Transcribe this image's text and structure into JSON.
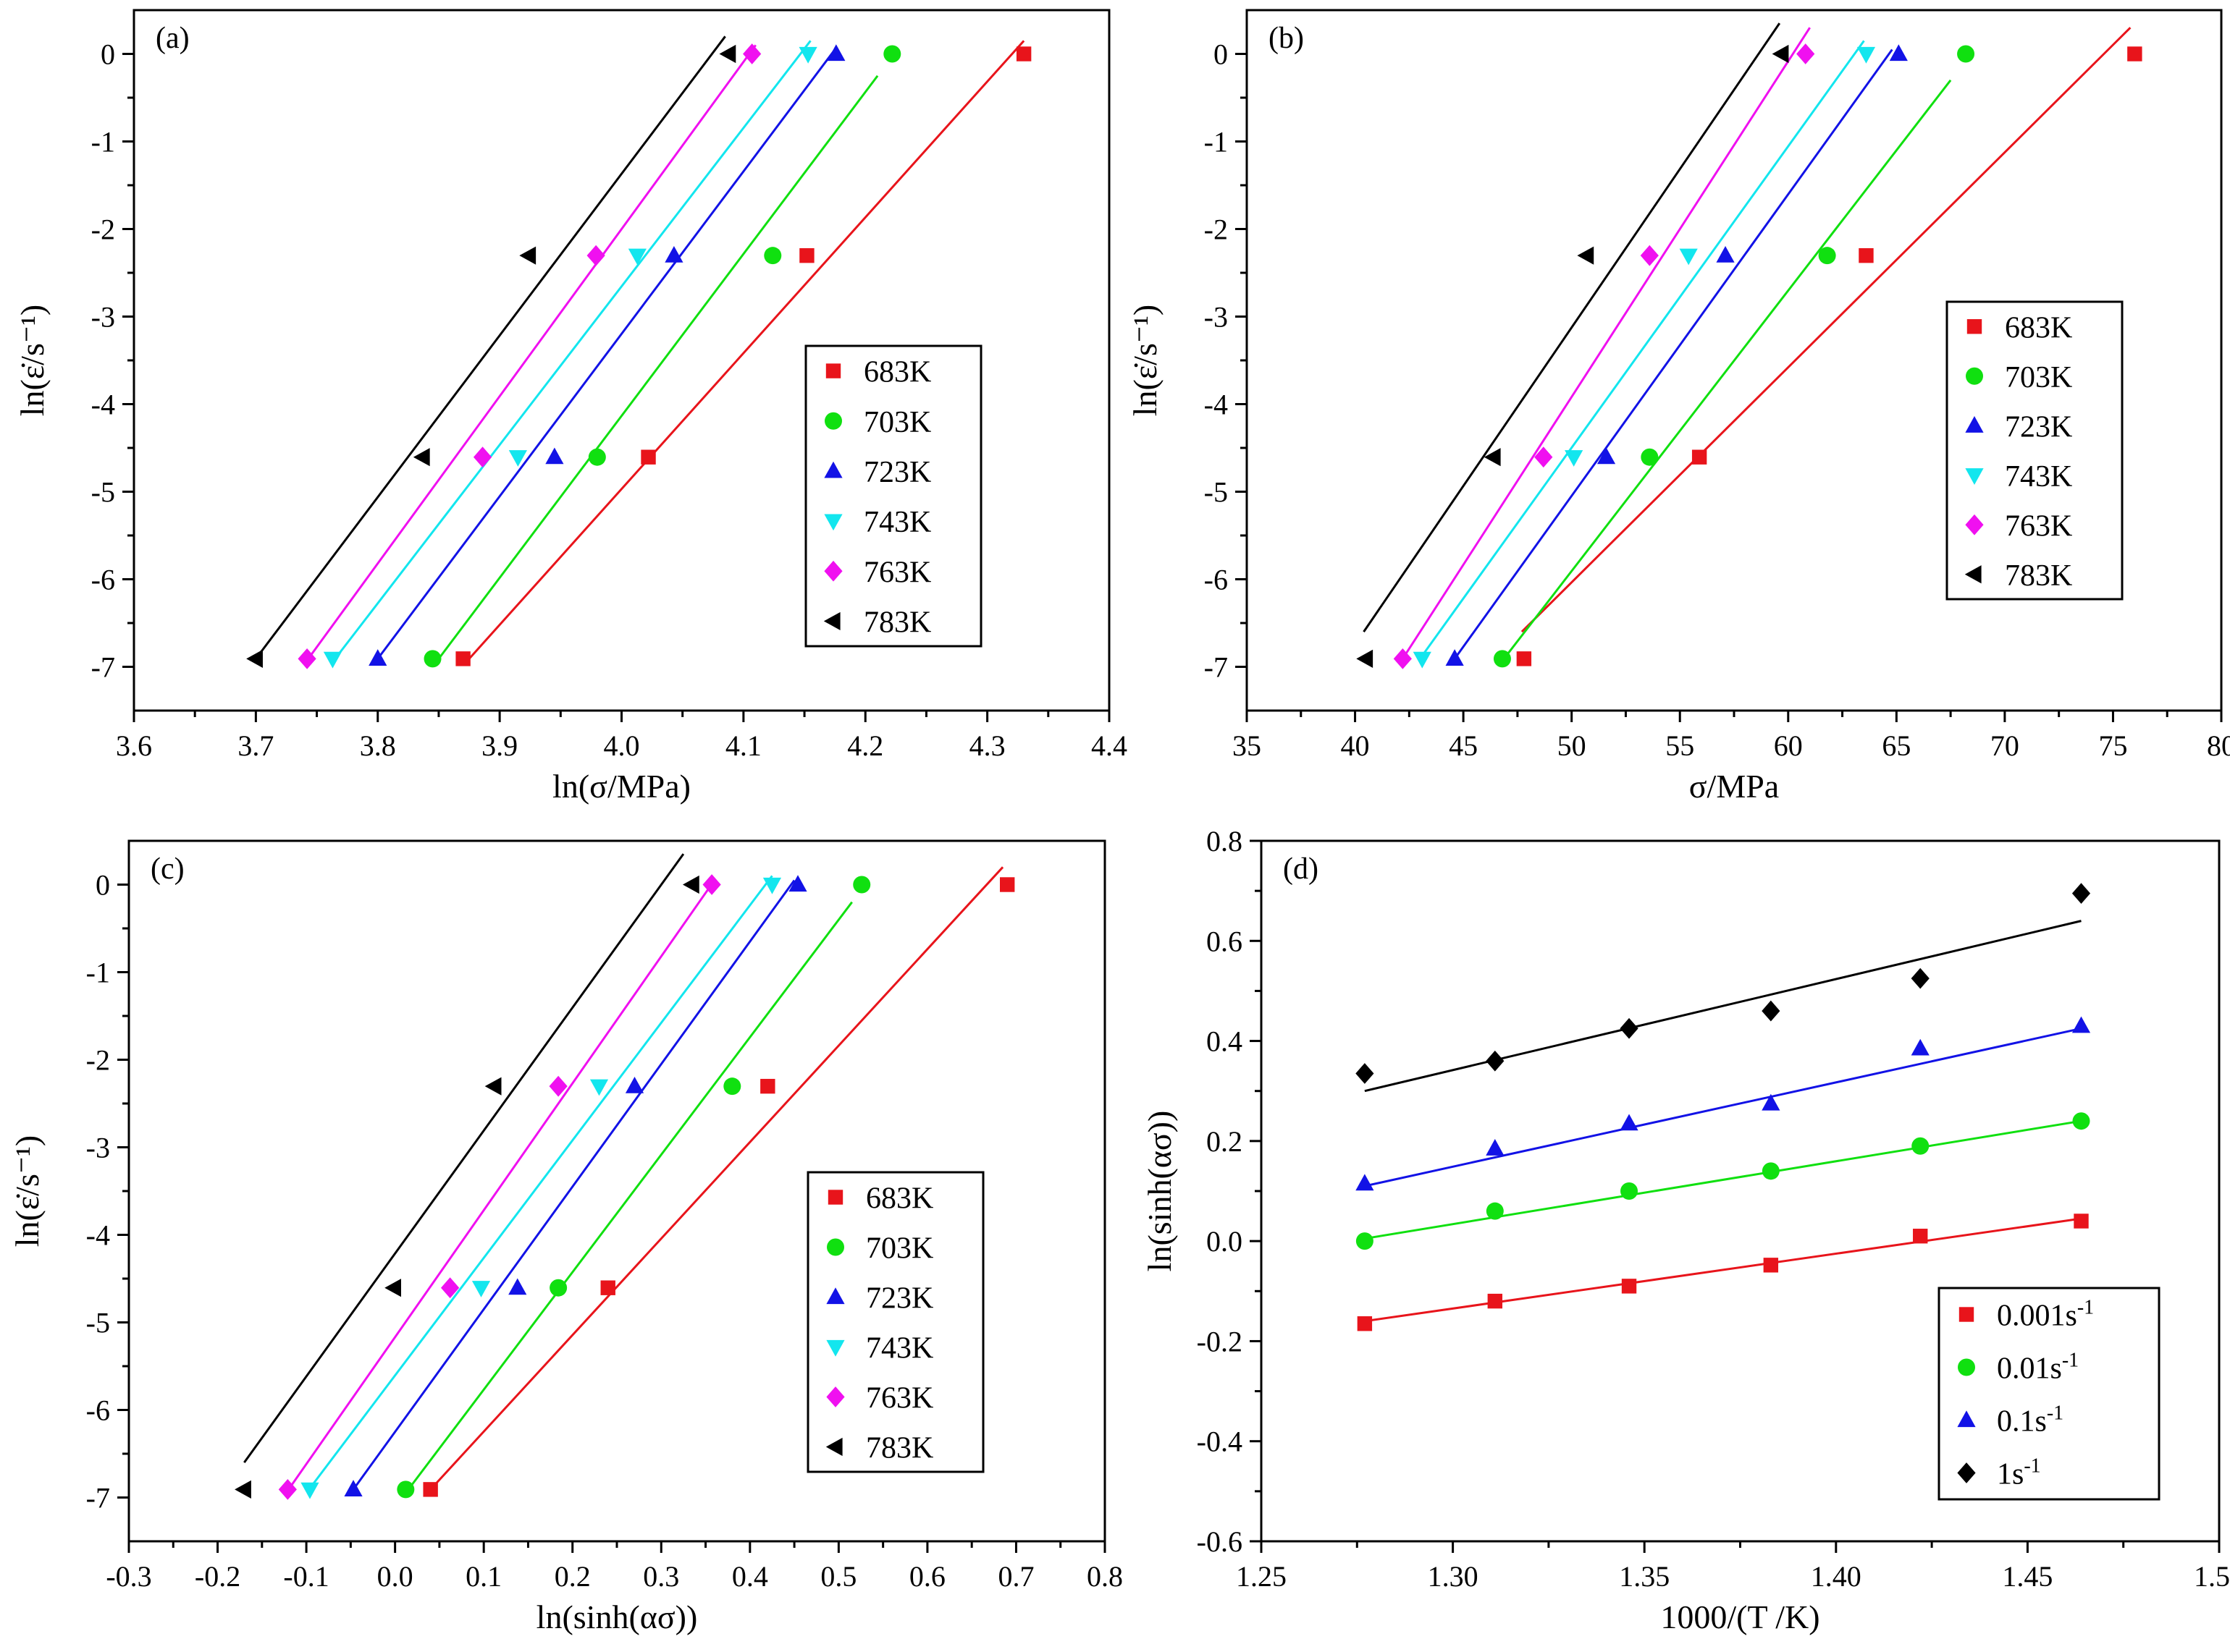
{
  "chart_data": [
    {
      "panel_label": "(a)",
      "type": "scatter",
      "xlabel": "ln(σ/MPa)",
      "ylabel": "ln(ε̇/s⁻¹)",
      "xlim": [
        3.6,
        4.4
      ],
      "ylim": [
        -7.5,
        0.5
      ],
      "xticks": [
        3.6,
        3.7,
        3.8,
        3.9,
        4.0,
        4.1,
        4.2,
        4.3,
        4.4
      ],
      "xtick_labels": [
        "3.6",
        "3.7",
        "3.8",
        "3.9",
        "4.0",
        "4.1",
        "4.2",
        "4.3",
        "4.4"
      ],
      "yticks": [
        0,
        -1,
        -2,
        -3,
        -4,
        -5,
        -6,
        -7
      ],
      "ytick_labels": [
        "0",
        "-1",
        "-2",
        "-3",
        "-4",
        "-5",
        "-6",
        "-7"
      ],
      "legend_position": "right",
      "series": [
        {
          "name": "683K",
          "color": "#e8141b",
          "marker": "square",
          "x": [
            3.87,
            4.022,
            4.152,
            4.33
          ],
          "y": [
            -6.908,
            -4.605,
            -2.303,
            0
          ],
          "fit": [
            [
              3.875,
              -6.908
            ],
            [
              4.33,
              0.15
            ]
          ]
        },
        {
          "name": "703K",
          "color": "#10e010",
          "marker": "circle",
          "x": [
            3.845,
            3.98,
            4.124,
            4.222
          ],
          "y": [
            -6.908,
            -4.605,
            -2.303,
            0
          ],
          "fit": [
            [
              3.85,
              -6.908
            ],
            [
              4.21,
              -0.25
            ]
          ]
        },
        {
          "name": "723K",
          "color": "#1212e6",
          "marker": "triangle-up",
          "x": [
            3.8,
            3.945,
            4.043,
            4.176
          ],
          "y": [
            -6.908,
            -4.605,
            -2.303,
            0
          ],
          "fit": [
            [
              3.8,
              -6.908
            ],
            [
              4.175,
              0.05
            ]
          ]
        },
        {
          "name": "743K",
          "color": "#13e6ee",
          "marker": "triangle-down",
          "x": [
            3.763,
            3.915,
            4.013,
            4.153
          ],
          "y": [
            -6.908,
            -4.605,
            -2.303,
            0
          ],
          "fit": [
            [
              3.765,
              -6.908
            ],
            [
              4.155,
              0.15
            ]
          ]
        },
        {
          "name": "763K",
          "color": "#f010f0",
          "marker": "diamond",
          "x": [
            3.742,
            3.886,
            3.979,
            4.107
          ],
          "y": [
            -6.908,
            -4.605,
            -2.303,
            0
          ],
          "fit": [
            [
              3.743,
              -6.908
            ],
            [
              4.11,
              0.1
            ]
          ]
        },
        {
          "name": "783K",
          "color": "#000000",
          "marker": "triangle-left",
          "x": [
            3.7,
            3.837,
            3.924,
            4.088
          ],
          "y": [
            -6.908,
            -4.605,
            -2.303,
            0
          ],
          "fit": [
            [
              3.7,
              -6.908
            ],
            [
              4.085,
              0.2
            ]
          ]
        }
      ]
    },
    {
      "panel_label": "(b)",
      "type": "scatter",
      "xlabel": "σ/MPa",
      "ylabel": "ln(ε̇/s⁻¹)",
      "xlim": [
        35,
        80
      ],
      "ylim": [
        -7.5,
        0.5
      ],
      "xticks": [
        35,
        40,
        45,
        50,
        55,
        60,
        65,
        70,
        75,
        80
      ],
      "xtick_labels": [
        "35",
        "40",
        "45",
        "50",
        "55",
        "60",
        "65",
        "70",
        "75",
        "80"
      ],
      "yticks": [
        0,
        -1,
        -2,
        -3,
        -4,
        -5,
        -6,
        -7
      ],
      "ytick_labels": [
        "0",
        "-1",
        "-2",
        "-3",
        "-4",
        "-5",
        "-6",
        "-7"
      ],
      "legend_position": "right",
      "series": [
        {
          "name": "683K",
          "color": "#e8141b",
          "marker": "square",
          "x": [
            47.8,
            55.9,
            63.6,
            76.0
          ],
          "y": [
            -6.908,
            -4.605,
            -2.303,
            0
          ],
          "fit": [
            [
              47.7,
              -6.6
            ],
            [
              75.8,
              0.3
            ]
          ]
        },
        {
          "name": "703K",
          "color": "#10e010",
          "marker": "circle",
          "x": [
            46.8,
            53.6,
            61.8,
            68.2
          ],
          "y": [
            -6.908,
            -4.605,
            -2.303,
            0
          ],
          "fit": [
            [
              46.9,
              -6.9
            ],
            [
              67.5,
              -0.3
            ]
          ]
        },
        {
          "name": "723K",
          "color": "#1212e6",
          "marker": "triangle-up",
          "x": [
            44.6,
            51.6,
            57.1,
            65.1
          ],
          "y": [
            -6.908,
            -4.605,
            -2.303,
            0
          ],
          "fit": [
            [
              44.6,
              -6.908
            ],
            [
              64.8,
              0.05
            ]
          ]
        },
        {
          "name": "743K",
          "color": "#13e6ee",
          "marker": "triangle-down",
          "x": [
            43.1,
            50.1,
            55.4,
            63.6
          ],
          "y": [
            -6.908,
            -4.605,
            -2.303,
            0
          ],
          "fit": [
            [
              43.0,
              -6.908
            ],
            [
              63.5,
              0.15
            ]
          ]
        },
        {
          "name": "763K",
          "color": "#f010f0",
          "marker": "diamond",
          "x": [
            42.2,
            48.7,
            53.6,
            60.8
          ],
          "y": [
            -6.908,
            -4.605,
            -2.303,
            0
          ],
          "fit": [
            [
              42.2,
              -6.908
            ],
            [
              61.0,
              0.3
            ]
          ]
        },
        {
          "name": "783K",
          "color": "#000000",
          "marker": "triangle-left",
          "x": [
            40.5,
            46.4,
            50.7,
            59.7
          ],
          "y": [
            -6.908,
            -4.605,
            -2.303,
            0
          ],
          "fit": [
            [
              40.4,
              -6.6
            ],
            [
              59.6,
              0.35
            ]
          ]
        }
      ]
    },
    {
      "panel_label": "(c)",
      "type": "scatter",
      "xlabel": "ln(sinh(ασ))",
      "ylabel": "ln(ε̇/s⁻¹)",
      "xlim": [
        -0.3,
        0.8
      ],
      "ylim": [
        -7.5,
        0.5
      ],
      "xticks": [
        -0.3,
        -0.2,
        -0.1,
        0.0,
        0.1,
        0.2,
        0.3,
        0.4,
        0.5,
        0.6,
        0.7,
        0.8
      ],
      "xtick_labels": [
        "-0.3",
        "-0.2",
        "-0.1",
        "0.0",
        "0.1",
        "0.2",
        "0.3",
        "0.4",
        "0.5",
        "0.6",
        "0.7",
        "0.8"
      ],
      "yticks": [
        0,
        -1,
        -2,
        -3,
        -4,
        -5,
        -6,
        -7
      ],
      "ytick_labels": [
        "0",
        "-1",
        "-2",
        "-3",
        "-4",
        "-5",
        "-6",
        "-7"
      ],
      "legend_position": "right",
      "series": [
        {
          "name": "683K",
          "color": "#e8141b",
          "marker": "square",
          "x": [
            0.04,
            0.24,
            0.42,
            0.69
          ],
          "y": [
            -6.908,
            -4.605,
            -2.303,
            0
          ],
          "fit": [
            [
              0.04,
              -6.908
            ],
            [
              0.685,
              0.2
            ]
          ]
        },
        {
          "name": "703K",
          "color": "#10e010",
          "marker": "circle",
          "x": [
            0.012,
            0.184,
            0.38,
            0.526
          ],
          "y": [
            -6.908,
            -4.605,
            -2.303,
            0
          ],
          "fit": [
            [
              0.015,
              -6.908
            ],
            [
              0.515,
              -0.2
            ]
          ]
        },
        {
          "name": "723K",
          "color": "#1212e6",
          "marker": "triangle-up",
          "x": [
            -0.047,
            0.138,
            0.27,
            0.454
          ],
          "y": [
            -6.908,
            -4.605,
            -2.303,
            0
          ],
          "fit": [
            [
              -0.047,
              -6.908
            ],
            [
              0.45,
              0.05
            ]
          ]
        },
        {
          "name": "743K",
          "color": "#13e6ee",
          "marker": "triangle-down",
          "x": [
            -0.096,
            0.097,
            0.23,
            0.425
          ],
          "y": [
            -6.908,
            -4.605,
            -2.303,
            0
          ],
          "fit": [
            [
              -0.097,
              -6.908
            ],
            [
              0.425,
              0.1
            ]
          ]
        },
        {
          "name": "763K",
          "color": "#f010f0",
          "marker": "diamond",
          "x": [
            -0.121,
            0.062,
            0.184,
            0.357
          ],
          "y": [
            -6.908,
            -4.605,
            -2.303,
            0
          ],
          "fit": [
            [
              -0.12,
              -6.908
            ],
            [
              0.36,
              0.05
            ]
          ]
        },
        {
          "name": "783K",
          "color": "#000000",
          "marker": "triangle-left",
          "x": [
            -0.17,
            -0.001,
            0.112,
            0.335
          ],
          "y": [
            -6.908,
            -4.605,
            -2.303,
            0
          ],
          "fit": [
            [
              -0.17,
              -6.6
            ],
            [
              0.325,
              0.35
            ]
          ]
        }
      ]
    },
    {
      "panel_label": "(d)",
      "type": "scatter",
      "xlabel": "1000/(T /K)",
      "ylabel": "ln(sinh(ασ))",
      "xlim": [
        1.25,
        1.5
      ],
      "ylim": [
        -0.6,
        0.8
      ],
      "xticks": [
        1.25,
        1.3,
        1.35,
        1.4,
        1.45,
        1.5
      ],
      "xtick_labels": [
        "1.25",
        "1.30",
        "1.35",
        "1.40",
        "1.45",
        "1.50"
      ],
      "yticks": [
        0.8,
        0.6,
        0.4,
        0.2,
        0.0,
        -0.2,
        -0.4,
        -0.6
      ],
      "ytick_labels": [
        "0.8",
        "0.6",
        "0.4",
        "0.2",
        "0.0",
        "-0.2",
        "-0.4",
        "-0.6"
      ],
      "legend_position": "bottom-right",
      "series": [
        {
          "name": "0.001s",
          "name_sup": "-1",
          "color": "#e8141b",
          "marker": "square",
          "x": [
            1.277,
            1.311,
            1.346,
            1.383,
            1.422,
            1.464
          ],
          "y": [
            -0.165,
            -0.12,
            -0.09,
            -0.048,
            0.01,
            0.04
          ],
          "fit": [
            [
              1.277,
              -0.16
            ],
            [
              1.464,
              0.045
            ]
          ]
        },
        {
          "name": "0.01s",
          "name_sup": "-1",
          "color": "#10e010",
          "marker": "circle",
          "x": [
            1.277,
            1.311,
            1.346,
            1.383,
            1.422,
            1.464
          ],
          "y": [
            0.0,
            0.06,
            0.1,
            0.14,
            0.19,
            0.24
          ],
          "fit": [
            [
              1.277,
              0.005
            ],
            [
              1.464,
              0.24
            ]
          ]
        },
        {
          "name": "0.1s",
          "name_sup": "-1",
          "color": "#1212e6",
          "marker": "triangle-up",
          "x": [
            1.277,
            1.311,
            1.346,
            1.383,
            1.422,
            1.464
          ],
          "y": [
            0.115,
            0.185,
            0.235,
            0.275,
            0.385,
            0.43
          ],
          "fit": [
            [
              1.277,
              0.11
            ],
            [
              1.464,
              0.425
            ]
          ]
        },
        {
          "name": "1s",
          "name_sup": "-1",
          "color": "#000000",
          "marker": "diamond",
          "x": [
            1.277,
            1.311,
            1.346,
            1.383,
            1.422,
            1.464
          ],
          "y": [
            0.335,
            0.36,
            0.425,
            0.46,
            0.525,
            0.695
          ],
          "fit": [
            [
              1.277,
              0.3
            ],
            [
              1.464,
              0.64
            ]
          ]
        }
      ]
    }
  ]
}
